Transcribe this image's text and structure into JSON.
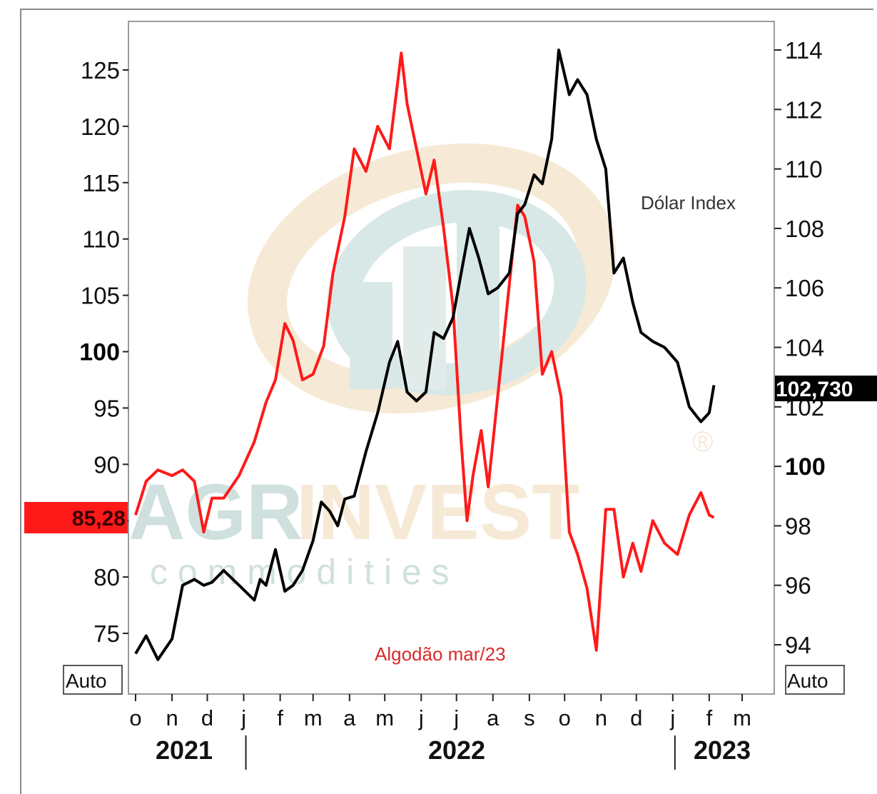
{
  "chart_data": {
    "type": "line",
    "title": "",
    "x_ticks": [
      "o",
      "n",
      "d",
      "j",
      "f",
      "m",
      "a",
      "m",
      "j",
      "j",
      "a",
      "s",
      "o",
      "n",
      "d",
      "j",
      "f",
      "m"
    ],
    "years": [
      "2021",
      "2022",
      "2023"
    ],
    "left_axis": {
      "ticks": [
        75,
        80,
        85,
        90,
        95,
        100,
        105,
        110,
        115,
        120,
        125
      ],
      "labels": [
        "75",
        "80",
        "85",
        "90",
        "95",
        "100",
        "105",
        "110",
        "115",
        "120",
        "125"
      ],
      "bold_tick": "100"
    },
    "right_axis": {
      "ticks": [
        94,
        96,
        98,
        100,
        102,
        104,
        106,
        108,
        110,
        112,
        114
      ],
      "labels": [
        "94",
        "96",
        "98",
        "100",
        "102",
        "104",
        "106",
        "108",
        "110",
        "112",
        "114"
      ],
      "bold_tick": "100"
    },
    "series": [
      {
        "name": "Algodão mar/23",
        "axis": "left",
        "color": "#ff1a1a",
        "last_value": "85,28",
        "x": [
          "2021-10-01",
          "2021-10-10",
          "2021-10-20",
          "2021-11-01",
          "2021-11-10",
          "2021-11-20",
          "2021-11-28",
          "2021-12-05",
          "2021-12-15",
          "2021-12-28",
          "2022-01-10",
          "2022-01-20",
          "2022-01-28",
          "2022-02-05",
          "2022-02-12",
          "2022-02-20",
          "2022-03-01",
          "2022-03-10",
          "2022-03-18",
          "2022-03-28",
          "2022-04-05",
          "2022-04-15",
          "2022-04-25",
          "2022-05-05",
          "2022-05-15",
          "2022-05-20",
          "2022-05-28",
          "2022-06-05",
          "2022-06-12",
          "2022-06-20",
          "2022-06-28",
          "2022-07-05",
          "2022-07-10",
          "2022-07-15",
          "2022-07-22",
          "2022-07-28",
          "2022-08-05",
          "2022-08-15",
          "2022-08-22",
          "2022-08-28",
          "2022-09-05",
          "2022-09-12",
          "2022-09-20",
          "2022-09-28",
          "2022-10-05",
          "2022-10-12",
          "2022-10-20",
          "2022-10-28",
          "2022-11-05",
          "2022-11-12",
          "2022-11-20",
          "2022-11-28",
          "2022-12-05",
          "2022-12-15",
          "2022-12-25",
          "2023-01-05",
          "2023-01-15",
          "2023-01-25",
          "2023-02-01",
          "2023-02-05"
        ],
        "values": [
          85.5,
          88.5,
          89.5,
          89.0,
          89.5,
          88.5,
          84.0,
          87.0,
          87.0,
          89.0,
          92.0,
          95.5,
          97.5,
          102.5,
          101.0,
          97.5,
          98.0,
          100.5,
          107.0,
          112.0,
          118.0,
          116.0,
          120.0,
          118.0,
          126.5,
          122.0,
          118.0,
          114.0,
          117.0,
          111.0,
          104.0,
          92.0,
          85.0,
          89.0,
          93.0,
          88.0,
          96.0,
          106.0,
          113.0,
          112.0,
          108.0,
          98.0,
          100.0,
          96.0,
          84.0,
          82.0,
          79.0,
          73.5,
          86.0,
          86.0,
          80.0,
          83.0,
          80.5,
          85.0,
          83.0,
          82.0,
          85.5,
          87.5,
          85.5,
          85.28
        ]
      },
      {
        "name": "Dólar Index",
        "axis": "right",
        "color": "#000000",
        "last_value": "102,730",
        "x": [
          "2021-10-01",
          "2021-10-10",
          "2021-10-20",
          "2021-11-01",
          "2021-11-10",
          "2021-11-20",
          "2021-11-28",
          "2021-12-05",
          "2021-12-15",
          "2021-12-28",
          "2022-01-10",
          "2022-01-15",
          "2022-01-20",
          "2022-01-28",
          "2022-02-05",
          "2022-02-12",
          "2022-02-20",
          "2022-03-01",
          "2022-03-08",
          "2022-03-15",
          "2022-03-22",
          "2022-03-28",
          "2022-04-05",
          "2022-04-15",
          "2022-04-25",
          "2022-05-05",
          "2022-05-12",
          "2022-05-20",
          "2022-05-28",
          "2022-06-05",
          "2022-06-12",
          "2022-06-20",
          "2022-06-28",
          "2022-07-05",
          "2022-07-12",
          "2022-07-20",
          "2022-07-28",
          "2022-08-05",
          "2022-08-15",
          "2022-08-22",
          "2022-08-28",
          "2022-09-05",
          "2022-09-12",
          "2022-09-20",
          "2022-09-26",
          "2022-10-05",
          "2022-10-12",
          "2022-10-20",
          "2022-10-28",
          "2022-11-05",
          "2022-11-12",
          "2022-11-20",
          "2022-11-28",
          "2022-12-05",
          "2022-12-15",
          "2022-12-25",
          "2023-01-05",
          "2023-01-15",
          "2023-01-25",
          "2023-02-01",
          "2023-02-05"
        ],
        "values": [
          93.7,
          94.3,
          93.5,
          94.2,
          96.0,
          96.2,
          96.0,
          96.1,
          96.5,
          96.0,
          95.5,
          96.2,
          96.0,
          97.2,
          95.8,
          96.0,
          96.5,
          97.5,
          98.8,
          98.5,
          98.0,
          98.9,
          99.0,
          100.5,
          101.8,
          103.5,
          104.2,
          102.5,
          102.2,
          102.5,
          104.5,
          104.3,
          105.0,
          106.5,
          108.0,
          107.0,
          105.8,
          106.0,
          106.5,
          108.5,
          108.8,
          109.8,
          109.5,
          111.0,
          114.0,
          112.5,
          113.0,
          112.5,
          111.0,
          110.0,
          106.5,
          107.0,
          105.5,
          104.5,
          104.2,
          104.0,
          103.5,
          102.0,
          101.5,
          101.8,
          102.73
        ]
      }
    ],
    "buttons": {
      "left": "Auto",
      "right": "Auto"
    },
    "watermark": {
      "brand_a": "AGR",
      "brand_b": "INVEST",
      "tagline": "c o m m o d i t i e s",
      "reg": "®"
    }
  }
}
